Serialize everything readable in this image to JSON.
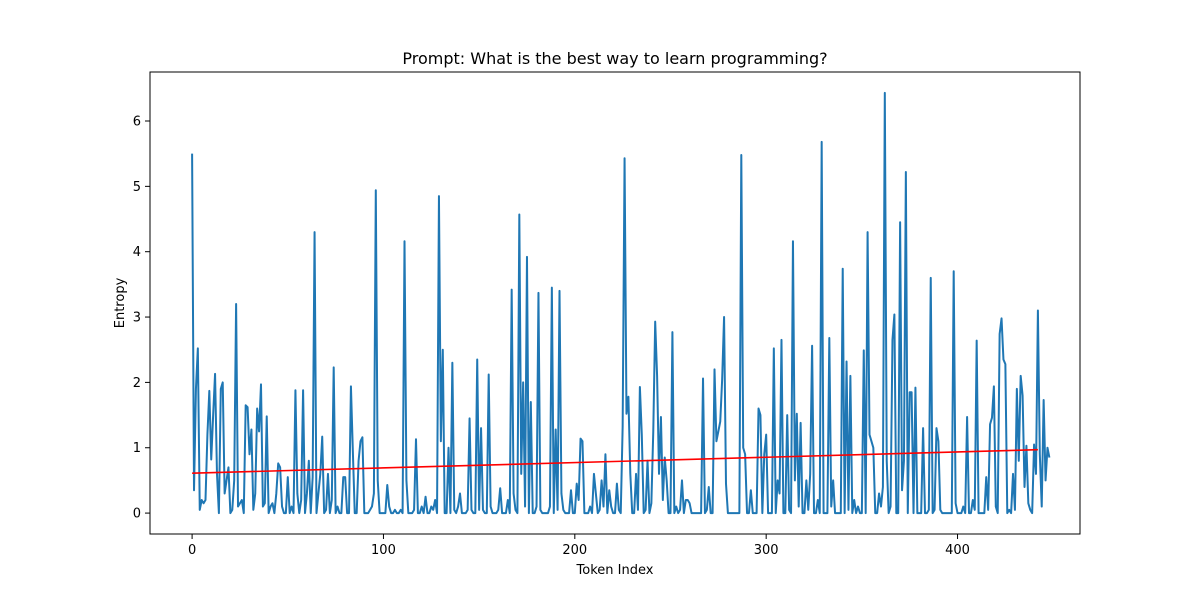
{
  "chart_data": {
    "type": "line",
    "title": "Prompt: What is the best way to learn programming?",
    "xlabel": "Token Index",
    "ylabel": "Entropy",
    "xlim": [
      -22,
      464
    ],
    "ylim": [
      -0.32,
      6.75
    ],
    "xticks": [
      0,
      100,
      200,
      300,
      400
    ],
    "yticks": [
      0,
      1,
      2,
      3,
      4,
      5,
      6
    ],
    "grid": false,
    "legend": "none",
    "series": [
      {
        "color": "#1f77b4",
        "x_start": 0,
        "x_step": 1,
        "values": [
          5.5,
          0.35,
          1.9,
          2.52,
          0.05,
          0.2,
          0.15,
          0.2,
          1.2,
          1.87,
          0.82,
          1.5,
          2.13,
          0.6,
          0.0,
          1.9,
          2.0,
          0.3,
          0.5,
          0.7,
          0.0,
          0.05,
          0.5,
          3.2,
          0.1,
          0.15,
          0.2,
          0.0,
          1.65,
          1.62,
          0.9,
          1.28,
          0.05,
          0.3,
          1.6,
          1.25,
          1.97,
          0.1,
          0.15,
          1.48,
          0.0,
          0.1,
          0.15,
          0.0,
          0.3,
          0.76,
          0.7,
          0.1,
          0.0,
          0.0,
          0.55,
          0.0,
          0.1,
          0.0,
          1.88,
          0.3,
          0.0,
          0.2,
          1.88,
          0.0,
          0.3,
          0.8,
          0.0,
          0.55,
          4.3,
          0.0,
          0.3,
          0.6,
          1.17,
          0.0,
          0.05,
          0.6,
          0.0,
          0.2,
          2.23,
          0.0,
          0.1,
          0.0,
          0.0,
          0.55,
          0.55,
          0.0,
          0.0,
          1.94,
          0.95,
          0.0,
          0.0,
          0.8,
          1.1,
          1.16,
          0.0,
          0.0,
          0.0,
          0.05,
          0.1,
          0.3,
          4.94,
          0.5,
          0.0,
          0.0,
          0.0,
          0.0,
          0.43,
          0.1,
          0.0,
          0.0,
          0.05,
          0.0,
          0.0,
          0.05,
          0.0,
          4.16,
          0.5,
          0.0,
          0.0,
          0.0,
          0.05,
          1.13,
          0.0,
          0.0,
          0.1,
          0.0,
          0.25,
          0.0,
          0.0,
          0.1,
          0.05,
          0.2,
          0.0,
          4.85,
          1.1,
          2.5,
          0.0,
          0.0,
          1.0,
          0.0,
          2.3,
          0.05,
          0.0,
          0.1,
          0.3,
          0.0,
          0.0,
          0.0,
          0.05,
          1.45,
          0.05,
          0.0,
          0.0,
          2.35,
          0.05,
          1.3,
          0.05,
          0.0,
          0.0,
          2.12,
          0.1,
          0.0,
          0.0,
          0.0,
          0.05,
          0.38,
          0.0,
          0.0,
          0.0,
          0.2,
          0.0,
          3.42,
          0.3,
          0.05,
          0.0,
          4.57,
          0.6,
          2.0,
          0.1,
          3.92,
          0.0,
          1.7,
          0.0,
          0.0,
          0.1,
          3.37,
          0.05,
          0.0,
          0.0,
          0.0,
          0.0,
          0.1,
          3.45,
          0.0,
          1.28,
          0.05,
          3.4,
          0.3,
          0.05,
          0.0,
          0.0,
          0.0,
          0.35,
          0.0,
          0.0,
          0.45,
          0.2,
          1.14,
          1.1,
          0.0,
          0.0,
          0.0,
          0.1,
          0.0,
          0.6,
          0.3,
          0.0,
          0.05,
          0.5,
          0.1,
          0.9,
          0.0,
          0.35,
          0.1,
          0.0,
          0.0,
          0.45,
          0.05,
          0.0,
          1.32,
          5.43,
          1.52,
          1.78,
          0.6,
          0.0,
          0.0,
          0.6,
          0.05,
          1.93,
          1.2,
          0.0,
          0.05,
          0.8,
          0.0,
          0.15,
          1.25,
          2.93,
          2.1,
          0.6,
          1.47,
          0.2,
          0.85,
          0.5,
          0.0,
          0.0,
          2.77,
          0.0,
          0.1,
          0.0,
          0.05,
          0.5,
          0.0,
          0.2,
          0.2,
          0.15,
          0.0,
          0.0,
          0.0,
          0.0,
          0.0,
          0.0,
          2.06,
          0.0,
          0.05,
          0.4,
          0.0,
          0.0,
          2.2,
          1.1,
          1.25,
          1.4,
          2.05,
          3.0,
          0.45,
          0.0,
          0.0,
          0.0,
          0.0,
          0.0,
          0.0,
          0.0,
          5.48,
          1.0,
          0.9,
          0.0,
          0.0,
          0.35,
          0.0,
          0.0,
          0.0,
          1.6,
          1.5,
          0.0,
          0.9,
          1.2,
          0.0,
          0.0,
          0.0,
          2.52,
          0.0,
          0.5,
          0.3,
          2.65,
          0.0,
          0.0,
          1.5,
          0.05,
          0.0,
          4.16,
          0.5,
          1.52,
          0.1,
          1.38,
          0.0,
          0.0,
          0.5,
          0.05,
          0.6,
          2.56,
          0.0,
          0.0,
          0.2,
          0.0,
          5.68,
          0.0,
          0.0,
          0.0,
          2.68,
          0.1,
          0.5,
          0.0,
          0.0,
          0.0,
          0.0,
          3.74,
          0.0,
          2.32,
          0.05,
          2.1,
          0.0,
          0.2,
          0.0,
          0.1,
          0.0,
          0.0,
          2.49,
          0.0,
          4.3,
          1.2,
          1.1,
          1.0,
          0.0,
          0.0,
          0.3,
          0.1,
          0.4,
          6.43,
          0.8,
          0.0,
          0.1,
          2.65,
          3.04,
          0.0,
          0.0,
          4.45,
          0.35,
          0.8,
          5.22,
          0.0,
          1.85,
          1.85,
          0.0,
          1.92,
          0.0,
          0.0,
          0.0,
          1.3,
          0.0,
          0.0,
          0.05,
          3.6,
          0.0,
          0.05,
          1.3,
          1.1,
          0.05,
          0.0,
          0.0,
          0.0,
          0.0,
          0.0,
          0.0,
          3.7,
          0.15,
          0.0,
          0.0,
          0.0,
          0.1,
          0.0,
          1.47,
          0.0,
          0.0,
          0.2,
          0.05,
          2.64,
          0.0,
          0.0,
          0.0,
          0.0,
          0.55,
          0.05,
          1.36,
          1.46,
          1.94,
          0.1,
          0.0,
          2.74,
          2.98,
          2.35,
          2.28,
          0.0,
          0.05,
          0.0,
          0.6,
          0.05,
          1.9,
          0.8,
          2.1,
          1.8,
          0.4,
          1.03,
          0.15,
          0.05,
          0.0,
          1.05,
          0.6,
          3.1,
          0.9,
          0.1,
          1.73,
          0.5,
          1.0,
          0.85
        ]
      },
      {
        "color": "#ff0000",
        "x": [
          0,
          442
        ],
        "values": [
          0.61,
          0.97
        ]
      }
    ]
  }
}
